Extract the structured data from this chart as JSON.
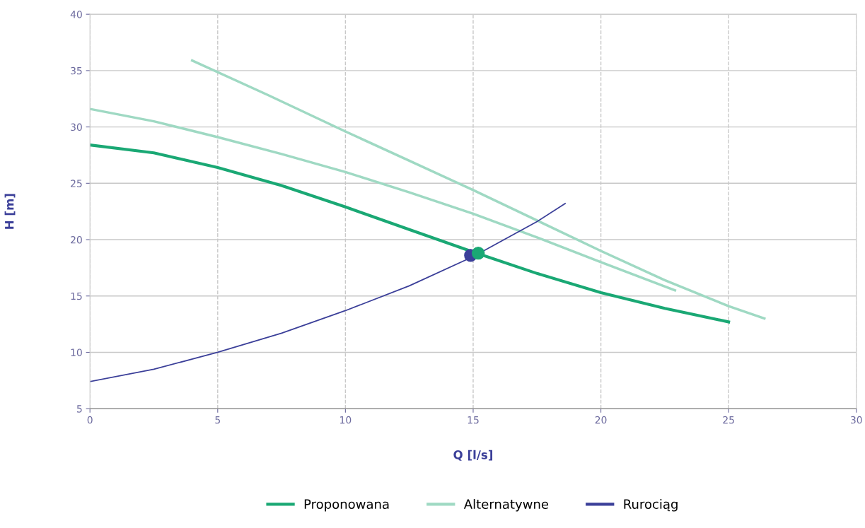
{
  "chart_data": {
    "type": "line",
    "xlabel": "Q [l/s]",
    "ylabel": "H [m]",
    "xlim": [
      0,
      30
    ],
    "ylim": [
      5,
      40
    ],
    "xticks": [
      0,
      5,
      10,
      15,
      20,
      25,
      30
    ],
    "yticks": [
      5,
      10,
      15,
      20,
      25,
      30,
      35,
      40
    ],
    "grid": true,
    "legend": "bottom",
    "marker": "none",
    "line_style": "solid",
    "series": [
      {
        "name": "Proponowana",
        "color": "#1aa874",
        "x": [
          0,
          2.5,
          5,
          7.5,
          10,
          12.5,
          15,
          17.5,
          20,
          22.5,
          25
        ],
        "values": [
          28.4,
          27.7,
          26.4,
          24.8,
          22.9,
          20.9,
          18.9,
          17.0,
          15.3,
          13.9,
          12.7
        ]
      },
      {
        "name": "Alternatywne",
        "color": "#9fd9c3",
        "x": [
          4,
          7,
          10,
          12.5,
          15,
          17.5,
          20,
          22.5,
          25,
          26.4
        ],
        "values": [
          35.9,
          32.8,
          29.6,
          27.0,
          24.4,
          21.7,
          19.0,
          16.4,
          14.1,
          13.0
        ]
      },
      {
        "color": "#9fd9c3",
        "x": [
          0,
          2.5,
          5,
          7.5,
          10,
          12.5,
          15,
          17.5,
          20,
          22.9
        ],
        "values": [
          31.6,
          30.5,
          29.1,
          27.6,
          26.0,
          24.2,
          22.3,
          20.2,
          18.0,
          15.5
        ]
      },
      {
        "name": "Rurociąg",
        "color": "#3b3f99",
        "x": [
          0,
          2.5,
          5,
          7.5,
          10,
          12.5,
          15,
          17.5,
          18.6
        ],
        "values": [
          7.4,
          8.5,
          10.0,
          11.7,
          13.7,
          15.9,
          18.5,
          21.6,
          23.2
        ]
      },
      {
        "type": "scatter",
        "marker": "circle",
        "color": "#3b3f99",
        "x": [
          14.9
        ],
        "values": [
          18.6
        ]
      },
      {
        "type": "scatter",
        "marker": "circle",
        "color": "#1aa874",
        "x": [
          15.2
        ],
        "values": [
          18.8
        ]
      }
    ]
  }
}
